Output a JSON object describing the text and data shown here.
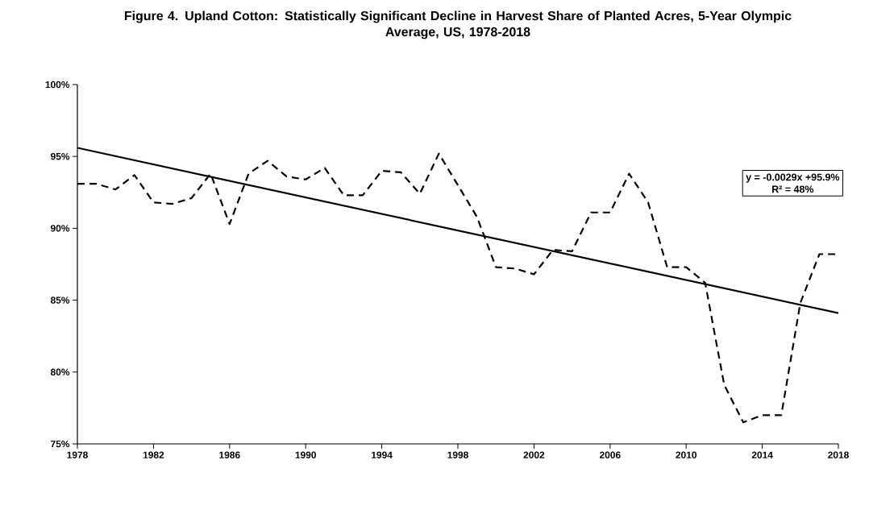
{
  "chart_data": {
    "type": "line",
    "title": "Figure 4. Upland Cotton: Statistically Significant Decline in Harvest Share of Planted Acres, 5-Year Olympic Average, US, 1978-2018",
    "x": [
      1978,
      1979,
      1980,
      1981,
      1982,
      1983,
      1984,
      1985,
      1986,
      1987,
      1988,
      1989,
      1990,
      1991,
      1992,
      1993,
      1994,
      1995,
      1996,
      1997,
      1998,
      1999,
      2000,
      2001,
      2002,
      2003,
      2004,
      2005,
      2006,
      2007,
      2008,
      2009,
      2010,
      2011,
      2012,
      2013,
      2014,
      2015,
      2016,
      2017,
      2018
    ],
    "series": [
      {
        "color": "#000000",
        "line_style": "dashed",
        "values": [
          93.1,
          93.1,
          92.7,
          93.7,
          91.8,
          91.7,
          92.1,
          93.8,
          90.3,
          93.8,
          94.7,
          93.6,
          93.4,
          94.2,
          92.3,
          92.3,
          94.0,
          93.9,
          92.4,
          95.2,
          93.0,
          90.8,
          87.3,
          87.2,
          86.8,
          88.5,
          88.4,
          91.1,
          91.1,
          93.8,
          91.8,
          87.3,
          87.3,
          86.2,
          79.1,
          76.5,
          77.0,
          77.0,
          84.8,
          88.2,
          88.2
        ]
      },
      {
        "color": "#000000",
        "line_style": "solid",
        "x": [
          1978,
          2018
        ],
        "values": [
          95.6,
          84.1
        ]
      }
    ],
    "annotations": [
      "y = -0.0029x +95.9%",
      "R² = 48%"
    ],
    "xlim": [
      1978,
      2018
    ],
    "xticks": [
      1978,
      1982,
      1986,
      1990,
      1994,
      1998,
      2002,
      2006,
      2010,
      2014,
      2018
    ],
    "ylim": [
      75,
      100
    ],
    "yticks": [
      {
        "value": 75,
        "label": "75%"
      },
      {
        "value": 80,
        "label": "80%"
      },
      {
        "value": 85,
        "label": "85%"
      },
      {
        "value": 90,
        "label": "90%"
      },
      {
        "value": 95,
        "label": "95%"
      },
      {
        "value": 100,
        "label": "100%"
      }
    ],
    "grid": false,
    "marker": "none"
  }
}
